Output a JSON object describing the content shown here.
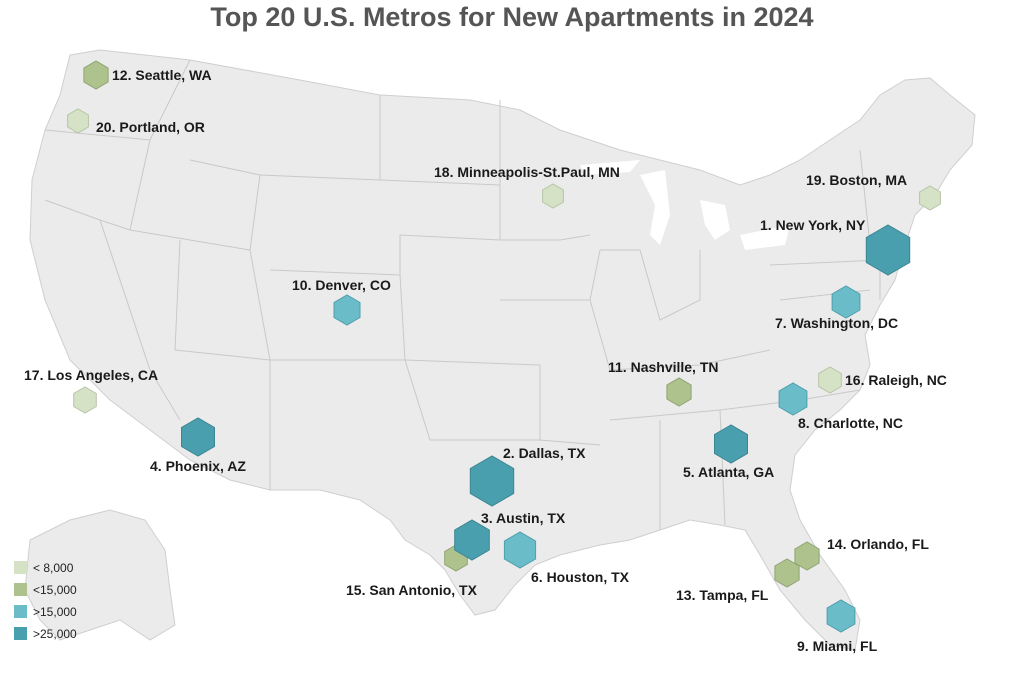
{
  "title": "Top 20 U.S. Metros for New Apartments in 2024",
  "legend": [
    {
      "label": "< 8,000",
      "color": "#d6e2c6"
    },
    {
      "label": "<15,000",
      "color": "#aec28d"
    },
    {
      "label": ">15,000",
      "color": "#6bbcc9"
    },
    {
      "label": ">25,000",
      "color": "#4a9fae"
    }
  ],
  "metros": [
    {
      "rank": 1,
      "label": "1. New York, NY",
      "tier": 3
    },
    {
      "rank": 2,
      "label": "2. Dallas, TX",
      "tier": 3
    },
    {
      "rank": 3,
      "label": "3. Austin, TX",
      "tier": 3
    },
    {
      "rank": 4,
      "label": "4. Phoenix, AZ",
      "tier": 3
    },
    {
      "rank": 5,
      "label": "5. Atlanta, GA",
      "tier": 3
    },
    {
      "rank": 6,
      "label": "6. Houston, TX",
      "tier": 2
    },
    {
      "rank": 7,
      "label": "7. Washington, DC",
      "tier": 2
    },
    {
      "rank": 8,
      "label": "8. Charlotte, NC",
      "tier": 2
    },
    {
      "rank": 9,
      "label": "9. Miami, FL",
      "tier": 2
    },
    {
      "rank": 10,
      "label": "10. Denver, CO",
      "tier": 2
    },
    {
      "rank": 11,
      "label": "11. Nashville, TN",
      "tier": 1
    },
    {
      "rank": 12,
      "label": "12. Seattle, WA",
      "tier": 1
    },
    {
      "rank": 13,
      "label": "13. Tampa, FL",
      "tier": 1
    },
    {
      "rank": 14,
      "label": "14. Orlando, FL",
      "tier": 1
    },
    {
      "rank": 15,
      "label": "15. San Antonio, TX",
      "tier": 1
    },
    {
      "rank": 16,
      "label": "16. Raleigh, NC",
      "tier": 0
    },
    {
      "rank": 17,
      "label": "17. Los Angeles, CA",
      "tier": 0
    },
    {
      "rank": 18,
      "label": "18. Minneapolis-St.Paul, MN",
      "tier": 0
    },
    {
      "rank": 19,
      "label": "19. Boston, MA",
      "tier": 0
    },
    {
      "rank": 20,
      "label": "20. Portland, OR",
      "tier": 0
    }
  ]
}
